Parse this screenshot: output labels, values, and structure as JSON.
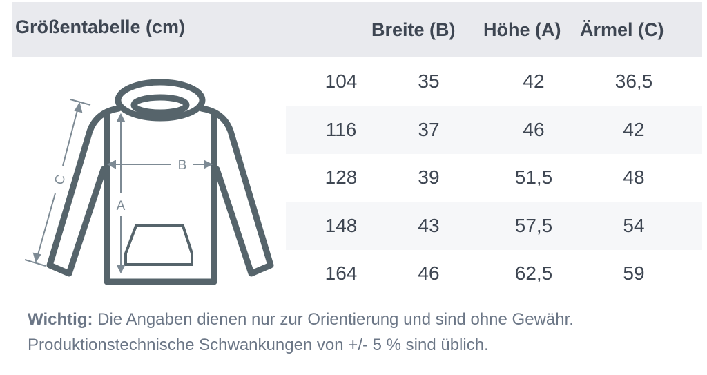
{
  "header": {
    "title": "Größentabelle (cm)",
    "columns": [
      "Breite (B)",
      "Höhe (A)",
      "Ärmel (C)"
    ]
  },
  "table": {
    "rows": [
      {
        "size": "104",
        "breite": "35",
        "hoehe": "42",
        "aermel": "36,5"
      },
      {
        "size": "116",
        "breite": "37",
        "hoehe": "46",
        "aermel": "42"
      },
      {
        "size": "128",
        "breite": "39",
        "hoehe": "51,5",
        "aermel": "48"
      },
      {
        "size": "148",
        "breite": "43",
        "hoehe": "57,5",
        "aermel": "54"
      },
      {
        "size": "164",
        "breite": "46",
        "hoehe": "62,5",
        "aermel": "59"
      }
    ]
  },
  "diagram": {
    "label_a": "A",
    "label_b": "B",
    "label_c": "C"
  },
  "footer": {
    "important_label": "Wichtig:",
    "line1": " Die Angaben dienen nur zur Orientierung und sind ohne Gewähr.",
    "line2": "Produktionstechnische Schwankungen von +/- 5 % sind üblich."
  },
  "colors": {
    "header_bg": "#e9eaee",
    "stripe_bg": "#f6f7f9",
    "garment_stroke": "#56646b",
    "measure_line": "#7d8a94",
    "text": "#3e4652",
    "footer_text": "#6b7686"
  }
}
